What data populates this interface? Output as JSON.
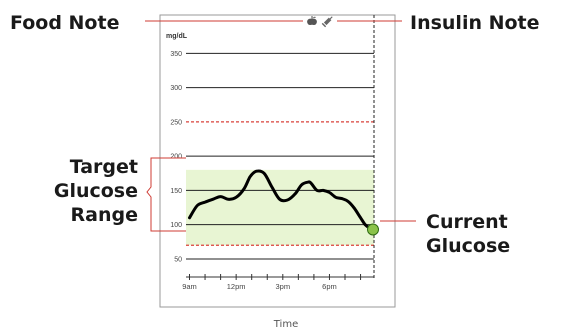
{
  "callouts": {
    "food_note": "Food Note",
    "insulin_note": "Insulin Note",
    "target_line1": "Target",
    "target_line2": "Glucose",
    "target_line3": "Range",
    "current_line1": "Current",
    "current_line2": "Glucose"
  },
  "icons": {
    "food": "apple-icon",
    "insulin": "syringe-icon"
  },
  "colors": {
    "target_band": "#e8f5d3",
    "threshold_line": "#d9413a",
    "glucose_line": "#000000",
    "current_marker": "#8bc34a",
    "callout_line": "#cf3b33"
  },
  "chart_data": {
    "type": "line",
    "y_unit_label": "mg/dL",
    "x_title": "Time",
    "ylim": [
      20,
      360
    ],
    "y_ticks": [
      50,
      100,
      150,
      200,
      250,
      300,
      350
    ],
    "x_ticks": [
      {
        "value": 9,
        "label": "9am"
      },
      {
        "value": 12,
        "label": "12pm"
      },
      {
        "value": 15,
        "label": "3pm"
      },
      {
        "value": 18,
        "label": "6pm"
      }
    ],
    "x_range": [
      9,
      20.8
    ],
    "target_range": [
      70,
      180
    ],
    "threshold_lines": [
      70,
      250
    ],
    "grid": true,
    "series": [
      {
        "x": [
          9.0,
          9.5,
          10.0,
          10.5,
          11.0,
          11.5,
          12.0,
          12.5,
          12.9,
          13.3,
          13.8,
          14.3,
          14.8,
          15.3,
          15.8,
          16.2,
          16.6,
          16.8,
          17.2,
          17.6,
          18.0,
          18.4,
          18.8,
          19.2,
          19.6,
          20.0,
          20.3,
          20.6,
          20.8
        ],
        "y": [
          110,
          128,
          133,
          137,
          141,
          137,
          140,
          152,
          170,
          178,
          175,
          155,
          137,
          136,
          145,
          158,
          162,
          161,
          150,
          150,
          147,
          140,
          138,
          134,
          124,
          110,
          100,
          95,
          93
        ]
      }
    ],
    "current_point": {
      "x": 20.8,
      "y": 93
    }
  }
}
